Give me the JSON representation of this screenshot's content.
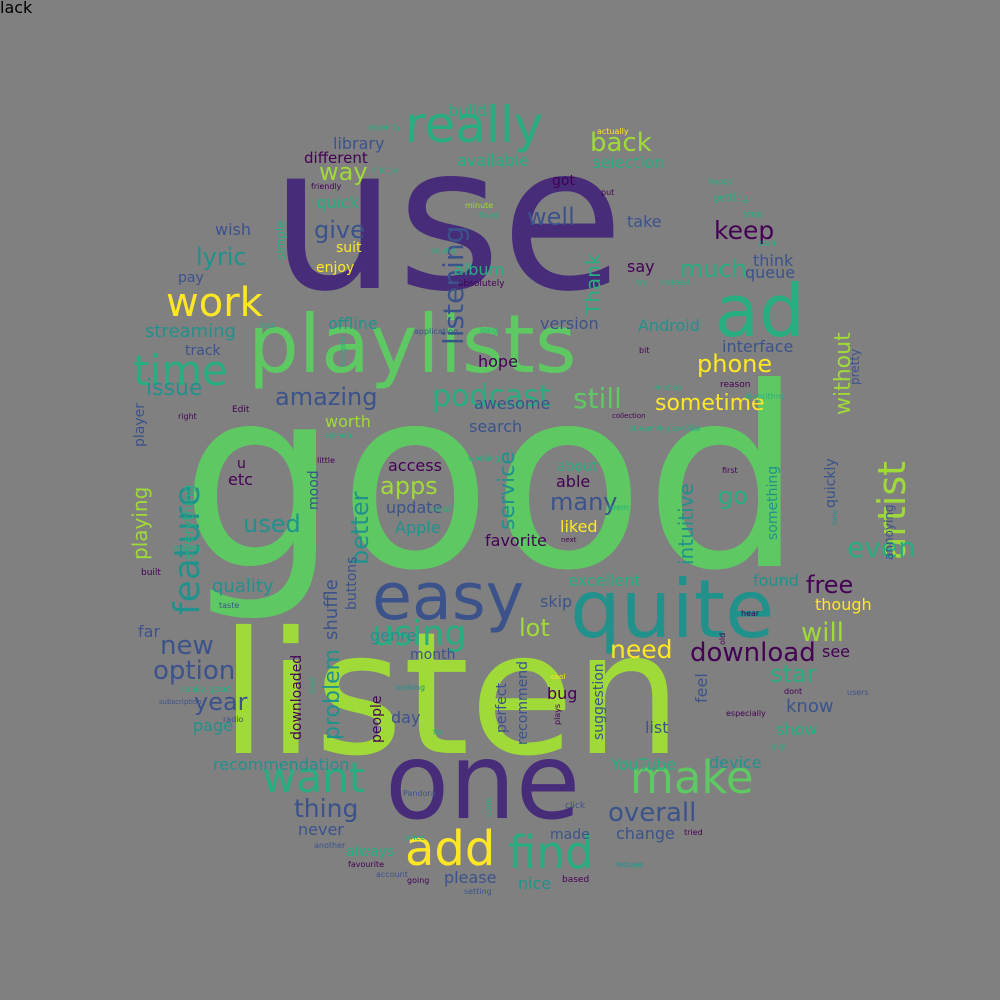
{
  "palette": {
    "background": "#808080",
    "purple": "#472c7a",
    "indigo": "#3b528b",
    "blue": "#2c728e",
    "teal": "#21918c",
    "cyan": "#28ae80",
    "green": "#5ec962",
    "lime": "#a0da39",
    "yellow": "#fde725",
    "dark": "#440154"
  },
  "words": [
    {
      "text": "good",
      "color": "green"
    },
    {
      "text": "use",
      "color": "purple"
    },
    {
      "text": "listen",
      "color": "lime"
    },
    {
      "text": "one",
      "color": "purple"
    },
    {
      "text": "playlists",
      "color": "green"
    },
    {
      "text": "quite",
      "color": "teal"
    },
    {
      "text": "easy",
      "color": "indigo"
    },
    {
      "text": "really",
      "color": "cyan"
    },
    {
      "text": "ad",
      "color": "cyan"
    },
    {
      "text": "add",
      "color": "yellow"
    },
    {
      "text": "find",
      "color": "cyan"
    },
    {
      "text": "make",
      "color": "green"
    },
    {
      "text": "want",
      "color": "cyan"
    },
    {
      "text": "time",
      "color": "cyan"
    },
    {
      "text": "work",
      "color": "yellow"
    },
    {
      "text": "feature",
      "color": "teal"
    },
    {
      "text": "artist",
      "color": "lime"
    },
    {
      "text": "using",
      "color": "cyan"
    },
    {
      "text": "podcast",
      "color": "cyan"
    },
    {
      "text": "still",
      "color": "green"
    },
    {
      "text": "listening",
      "color": "indigo"
    },
    {
      "text": "download",
      "color": "dark"
    },
    {
      "text": "option",
      "color": "indigo"
    },
    {
      "text": "overall",
      "color": "indigo"
    },
    {
      "text": "need",
      "color": "yellow"
    },
    {
      "text": "thing",
      "color": "indigo"
    },
    {
      "text": "issue",
      "color": "teal"
    },
    {
      "text": "amazing",
      "color": "indigo"
    },
    {
      "text": "apps",
      "color": "lime"
    },
    {
      "text": "many",
      "color": "indigo"
    },
    {
      "text": "phone",
      "color": "yellow"
    },
    {
      "text": "sometime",
      "color": "yellow"
    },
    {
      "text": "much",
      "color": "cyan"
    },
    {
      "text": "keep",
      "color": "dark"
    },
    {
      "text": "back",
      "color": "lime"
    },
    {
      "text": "well",
      "color": "indigo"
    },
    {
      "text": "give",
      "color": "indigo"
    },
    {
      "text": "way",
      "color": "lime"
    },
    {
      "text": "lyric",
      "color": "teal"
    },
    {
      "text": "new",
      "color": "indigo"
    },
    {
      "text": "year",
      "color": "indigo"
    },
    {
      "text": "lot",
      "color": "lime"
    },
    {
      "text": "will",
      "color": "lime"
    },
    {
      "text": "free",
      "color": "dark"
    },
    {
      "text": "star",
      "color": "cyan"
    },
    {
      "text": "even",
      "color": "cyan"
    },
    {
      "text": "go",
      "color": "cyan"
    },
    {
      "text": "used",
      "color": "teal"
    },
    {
      "text": "better",
      "color": "teal"
    },
    {
      "text": "service",
      "color": "teal"
    },
    {
      "text": "intuitive",
      "color": "teal"
    },
    {
      "text": "without",
      "color": "lime"
    },
    {
      "text": "Thank",
      "color": "cyan"
    },
    {
      "text": "playing",
      "color": "lime"
    },
    {
      "text": "problem",
      "color": "teal"
    },
    {
      "text": "quality",
      "color": "teal"
    },
    {
      "text": "streaming",
      "color": "teal"
    },
    {
      "text": "library",
      "color": "indigo"
    },
    {
      "text": "different",
      "color": "dark"
    },
    {
      "text": "available",
      "color": "cyan"
    },
    {
      "text": "selection",
      "color": "cyan"
    },
    {
      "text": "build",
      "color": "cyan"
    },
    {
      "text": "quick",
      "color": "cyan"
    },
    {
      "text": "wish",
      "color": "indigo"
    },
    {
      "text": "suit",
      "color": "yellow"
    },
    {
      "text": "enjoy",
      "color": "yellow"
    },
    {
      "text": "album",
      "color": "cyan"
    },
    {
      "text": "offline",
      "color": "teal"
    },
    {
      "text": "version",
      "color": "indigo"
    },
    {
      "text": "Android",
      "color": "teal"
    },
    {
      "text": "interface",
      "color": "indigo"
    },
    {
      "text": "think",
      "color": "indigo"
    },
    {
      "text": "queue",
      "color": "indigo"
    },
    {
      "text": "say",
      "color": "dark"
    },
    {
      "text": "take",
      "color": "indigo"
    },
    {
      "text": "got",
      "color": "dark"
    },
    {
      "text": "hope",
      "color": "dark"
    },
    {
      "text": "pay",
      "color": "indigo"
    },
    {
      "text": "track",
      "color": "indigo"
    },
    {
      "text": "worth",
      "color": "lime"
    },
    {
      "text": "search",
      "color": "indigo"
    },
    {
      "text": "awesome",
      "color": "indigo"
    },
    {
      "text": "access",
      "color": "dark"
    },
    {
      "text": "update",
      "color": "indigo"
    },
    {
      "text": "able",
      "color": "dark"
    },
    {
      "text": "liked",
      "color": "yellow"
    },
    {
      "text": "Apple",
      "color": "teal"
    },
    {
      "text": "favorite",
      "color": "dark"
    },
    {
      "text": "etc",
      "color": "dark"
    },
    {
      "text": "u",
      "color": "dark"
    },
    {
      "text": "mood",
      "color": "indigo"
    },
    {
      "text": "shuffle",
      "color": "indigo"
    },
    {
      "text": "buttons",
      "color": "indigo"
    },
    {
      "text": "genre",
      "color": "teal"
    },
    {
      "text": "skip",
      "color": "indigo"
    },
    {
      "text": "month",
      "color": "indigo"
    },
    {
      "text": "excellent",
      "color": "cyan"
    },
    {
      "text": "found",
      "color": "teal"
    },
    {
      "text": "though",
      "color": "yellow"
    },
    {
      "text": "see",
      "color": "dark"
    },
    {
      "text": "know",
      "color": "indigo"
    },
    {
      "text": "show",
      "color": "cyan"
    },
    {
      "text": "device",
      "color": "teal"
    },
    {
      "text": "list",
      "color": "indigo"
    },
    {
      "text": "YouTube",
      "color": "cyan"
    },
    {
      "text": "change",
      "color": "indigo"
    },
    {
      "text": "made",
      "color": "indigo"
    },
    {
      "text": "please",
      "color": "indigo"
    },
    {
      "text": "nice",
      "color": "teal"
    },
    {
      "text": "never",
      "color": "indigo"
    },
    {
      "text": "always",
      "color": "cyan"
    },
    {
      "text": "far",
      "color": "indigo"
    },
    {
      "text": "page",
      "color": "teal"
    },
    {
      "text": "recommendation",
      "color": "teal"
    },
    {
      "text": "day",
      "color": "indigo"
    },
    {
      "text": "bug",
      "color": "dark"
    },
    {
      "text": "people",
      "color": "dark"
    },
    {
      "text": "recommend",
      "color": "indigo"
    },
    {
      "text": "perfect",
      "color": "indigo"
    },
    {
      "text": "suggestion",
      "color": "indigo"
    },
    {
      "text": "feel",
      "color": "indigo"
    },
    {
      "text": "downloaded",
      "color": "dark"
    },
    {
      "text": "everything",
      "color": "cyan"
    },
    {
      "text": "player",
      "color": "indigo"
    },
    {
      "text": "quickly",
      "color": "indigo"
    },
    {
      "text": "something",
      "color": "teal"
    },
    {
      "text": "pretty",
      "color": "indigo"
    },
    {
      "text": "annoying",
      "color": "indigo"
    },
    {
      "text": "simple",
      "color": "cyan"
    },
    {
      "text": "about",
      "color": "cyan"
    },
    {
      "text": "recently",
      "color": "cyan"
    },
    {
      "text": "choice",
      "color": "cyan"
    },
    {
      "text": "friendly",
      "color": "dark"
    },
    {
      "text": "minute",
      "color": "lime"
    },
    {
      "text": "fixed",
      "color": "cyan"
    },
    {
      "text": "put",
      "color": "dark"
    },
    {
      "text": "actually",
      "color": "yellow"
    },
    {
      "text": "happy",
      "color": "cyan"
    },
    {
      "text": "getting",
      "color": "cyan"
    },
    {
      "text": "stop",
      "color": "cyan"
    },
    {
      "text": "start",
      "color": "cyan"
    },
    {
      "text": "sound",
      "color": "cyan"
    },
    {
      "text": "absolutely",
      "color": "dark"
    },
    {
      "text": "try",
      "color": "cyan"
    },
    {
      "text": "instead",
      "color": "cyan"
    },
    {
      "text": "long",
      "color": "cyan"
    },
    {
      "text": "bit",
      "color": "dark"
    },
    {
      "text": "money",
      "color": "cyan"
    },
    {
      "text": "reason",
      "color": "dark"
    },
    {
      "text": "collection",
      "color": "dark"
    },
    {
      "text": "streaming service",
      "color": "cyan"
    },
    {
      "text": "Edit",
      "color": "dark"
    },
    {
      "text": "right",
      "color": "dark"
    },
    {
      "text": "screen",
      "color": "cyan"
    },
    {
      "text": "little",
      "color": "dark"
    },
    {
      "text": "mobile",
      "color": "cyan"
    },
    {
      "text": "built",
      "color": "dark"
    },
    {
      "text": "taste",
      "color": "indigo"
    },
    {
      "text": "really good",
      "color": "cyan"
    },
    {
      "text": "subscription",
      "color": "indigo"
    },
    {
      "text": "radio",
      "color": "indigo"
    },
    {
      "text": "looking",
      "color": "teal"
    },
    {
      "text": "cool",
      "color": "yellow"
    },
    {
      "text": "plays",
      "color": "dark"
    },
    {
      "text": "fix",
      "color": "cyan"
    },
    {
      "text": "next",
      "color": "dark"
    },
    {
      "text": "first",
      "color": "dark"
    },
    {
      "text": "help",
      "color": "teal"
    },
    {
      "text": "users",
      "color": "indigo"
    },
    {
      "text": "hear",
      "color": "dark"
    },
    {
      "text": "dont",
      "color": "dark"
    },
    {
      "text": "especially",
      "color": "dark"
    },
    {
      "text": "guy",
      "color": "cyan"
    },
    {
      "text": "old",
      "color": "dark"
    },
    {
      "text": "Pandora",
      "color": "indigo"
    },
    {
      "text": "click",
      "color": "indigo"
    },
    {
      "text": "tried",
      "color": "dark"
    },
    {
      "text": "price",
      "color": "cyan"
    },
    {
      "text": "favourite",
      "color": "dark"
    },
    {
      "text": "account",
      "color": "indigo"
    },
    {
      "text": "going",
      "color": "dark"
    },
    {
      "text": "setting",
      "color": "indigo"
    },
    {
      "text": "based",
      "color": "dark"
    },
    {
      "text": "require",
      "color": "teal"
    },
    {
      "text": "another",
      "color": "indigo"
    },
    {
      "text": "seem",
      "color": "cyan"
    },
    {
      "text": "menu",
      "color": "cyan"
    },
    {
      "text": "code",
      "color": "cyan"
    },
    {
      "text": "algorithm",
      "color": "cyan"
    },
    {
      "text": "loss",
      "color": "cyan"
    },
    {
      "text": "navigate",
      "color": "cyan"
    },
    {
      "text": "working",
      "color": "cyan"
    },
    {
      "text": "load",
      "color": "cyan"
    },
    {
      "text": "application",
      "color": "indigo"
    },
    {
      "text": "lack",
      "color": "cyan"
    }
  ]
}
